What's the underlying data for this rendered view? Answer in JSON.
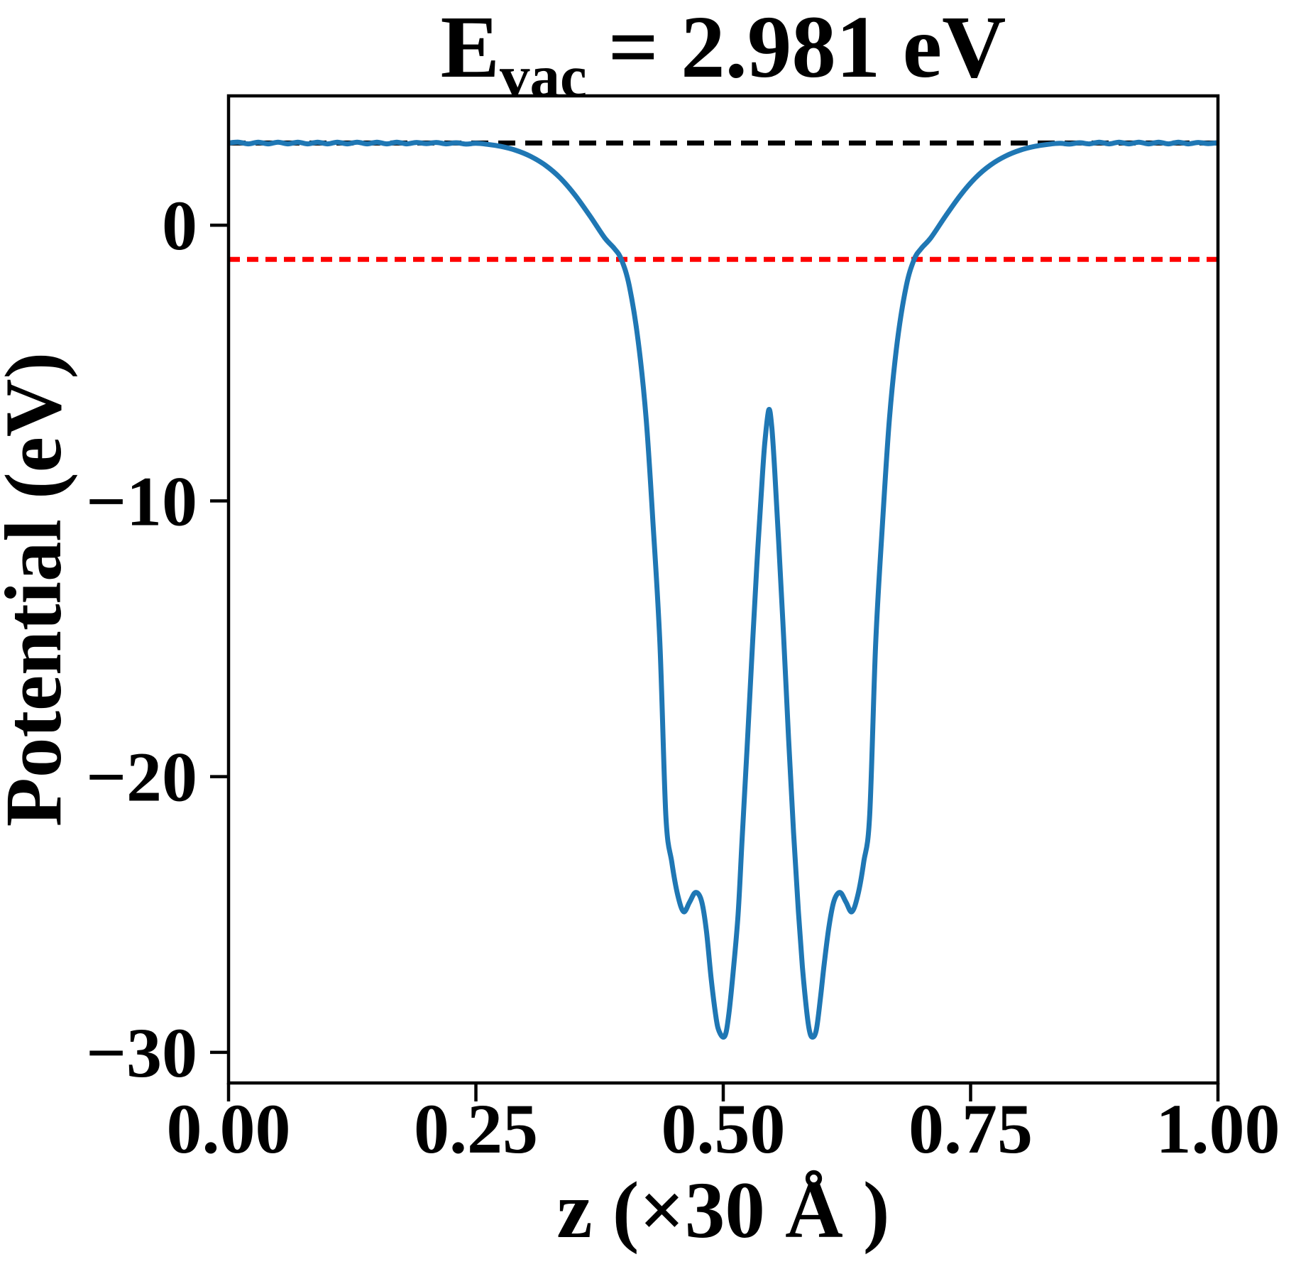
{
  "title": {
    "prefix": "E",
    "subscript": "vac",
    "suffix": "= 2.981 eV",
    "full_text": "E_vac = 2.981 eV"
  },
  "chart_data": {
    "type": "line",
    "title": "E_vac = 2.981 eV",
    "xlabel": "z (×30 Å )",
    "ylabel": "Potential (eV)",
    "xlim": [
      0.0,
      1.0
    ],
    "ylim": [
      -31.11,
      4.69
    ],
    "grid": false,
    "legend": null,
    "xticks": {
      "values": [
        0.0,
        0.25,
        0.5,
        0.75,
        1.0
      ],
      "labels": [
        "0.00",
        "0.25",
        "0.50",
        "0.75",
        "1.00"
      ]
    },
    "yticks": {
      "values": [
        0,
        -10,
        -20,
        -30
      ],
      "labels": [
        "0",
        "−10",
        "−20",
        "−30"
      ]
    },
    "hlines": [
      {
        "name": "vacuum-level-line",
        "y": 2.981,
        "color": "#000000",
        "style": "dashed",
        "dash": "24 14",
        "width": 7
      },
      {
        "name": "fermi-level-line",
        "y": -1.24,
        "color": "#ff0000",
        "style": "dashed",
        "dash": "16 10",
        "width": 7
      }
    ],
    "series": [
      {
        "name": "planar-averaged electrostatic potential",
        "color": "#1f77b4",
        "style": "solid",
        "width": 7,
        "points": [
          [
            0.0,
            2.98
          ],
          [
            0.01,
            3.01
          ],
          [
            0.02,
            2.95
          ],
          [
            0.03,
            3.01
          ],
          [
            0.04,
            2.95
          ],
          [
            0.05,
            3.01
          ],
          [
            0.06,
            2.95
          ],
          [
            0.07,
            3.01
          ],
          [
            0.08,
            2.95
          ],
          [
            0.09,
            3.01
          ],
          [
            0.1,
            2.95
          ],
          [
            0.11,
            3.01
          ],
          [
            0.12,
            2.95
          ],
          [
            0.13,
            3.01
          ],
          [
            0.14,
            2.95
          ],
          [
            0.15,
            3.01
          ],
          [
            0.16,
            2.95
          ],
          [
            0.17,
            3.01
          ],
          [
            0.18,
            2.95
          ],
          [
            0.19,
            3.0
          ],
          [
            0.2,
            2.96
          ],
          [
            0.21,
            3.0
          ],
          [
            0.22,
            2.95
          ],
          [
            0.23,
            2.99
          ],
          [
            0.24,
            2.94
          ],
          [
            0.25,
            2.97
          ],
          [
            0.262,
            2.93
          ],
          [
            0.275,
            2.86
          ],
          [
            0.29,
            2.72
          ],
          [
            0.305,
            2.5
          ],
          [
            0.32,
            2.18
          ],
          [
            0.335,
            1.72
          ],
          [
            0.35,
            1.1
          ],
          [
            0.365,
            0.35
          ],
          [
            0.38,
            -0.45
          ],
          [
            0.39,
            -0.85
          ],
          [
            0.397,
            -1.24
          ],
          [
            0.405,
            -2.2
          ],
          [
            0.414,
            -4.2
          ],
          [
            0.422,
            -7.0
          ],
          [
            0.429,
            -10.8
          ],
          [
            0.436,
            -15.2
          ],
          [
            0.442,
            -21.4
          ],
          [
            0.448,
            -23.1
          ],
          [
            0.454,
            -24.3
          ],
          [
            0.46,
            -24.9
          ],
          [
            0.466,
            -24.55
          ],
          [
            0.472,
            -24.2
          ],
          [
            0.478,
            -24.5
          ],
          [
            0.483,
            -25.6
          ],
          [
            0.488,
            -27.4
          ],
          [
            0.493,
            -28.8
          ],
          [
            0.496,
            -29.25
          ],
          [
            0.5,
            -29.45
          ],
          [
            0.503,
            -29.25
          ],
          [
            0.506,
            -28.5
          ],
          [
            0.51,
            -27.1
          ],
          [
            0.515,
            -25.0
          ],
          [
            0.519,
            -22.3
          ],
          [
            0.524,
            -19.0
          ],
          [
            0.529,
            -15.6
          ],
          [
            0.534,
            -12.3
          ],
          [
            0.539,
            -9.4
          ],
          [
            0.542,
            -7.9
          ],
          [
            0.546,
            -6.7
          ],
          [
            0.549,
            -7.3
          ],
          [
            0.552,
            -8.9
          ],
          [
            0.556,
            -11.5
          ],
          [
            0.561,
            -14.9
          ],
          [
            0.566,
            -18.6
          ],
          [
            0.571,
            -22.0
          ],
          [
            0.576,
            -24.9
          ],
          [
            0.58,
            -26.9
          ],
          [
            0.584,
            -28.4
          ],
          [
            0.587,
            -29.2
          ],
          [
            0.59,
            -29.45
          ],
          [
            0.594,
            -29.2
          ],
          [
            0.598,
            -28.1
          ],
          [
            0.602,
            -26.8
          ],
          [
            0.607,
            -25.4
          ],
          [
            0.612,
            -24.5
          ],
          [
            0.618,
            -24.2
          ],
          [
            0.624,
            -24.55
          ],
          [
            0.63,
            -24.9
          ],
          [
            0.636,
            -24.3
          ],
          [
            0.642,
            -23.1
          ],
          [
            0.648,
            -21.4
          ],
          [
            0.654,
            -15.2
          ],
          [
            0.661,
            -10.8
          ],
          [
            0.668,
            -7.0
          ],
          [
            0.676,
            -4.2
          ],
          [
            0.685,
            -2.2
          ],
          [
            0.693,
            -1.24
          ],
          [
            0.7,
            -0.85
          ],
          [
            0.71,
            -0.45
          ],
          [
            0.725,
            0.35
          ],
          [
            0.74,
            1.1
          ],
          [
            0.755,
            1.72
          ],
          [
            0.77,
            2.18
          ],
          [
            0.785,
            2.5
          ],
          [
            0.8,
            2.72
          ],
          [
            0.815,
            2.86
          ],
          [
            0.828,
            2.93
          ],
          [
            0.84,
            2.97
          ],
          [
            0.85,
            2.94
          ],
          [
            0.86,
            2.99
          ],
          [
            0.87,
            2.95
          ],
          [
            0.88,
            3.01
          ],
          [
            0.89,
            2.95
          ],
          [
            0.9,
            3.01
          ],
          [
            0.91,
            2.95
          ],
          [
            0.92,
            3.01
          ],
          [
            0.93,
            2.95
          ],
          [
            0.94,
            3.01
          ],
          [
            0.95,
            2.95
          ],
          [
            0.96,
            3.01
          ],
          [
            0.97,
            2.95
          ],
          [
            0.98,
            3.0
          ],
          [
            0.99,
            2.96
          ],
          [
            1.0,
            2.99
          ]
        ]
      }
    ]
  }
}
